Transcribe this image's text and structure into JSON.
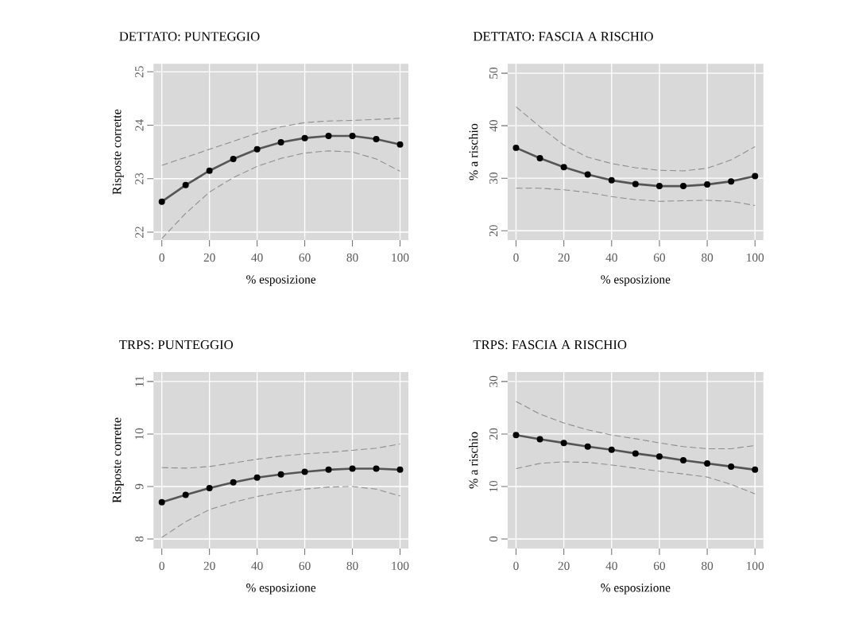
{
  "chart_data": [
    {
      "type": "line",
      "title": "DETTATO: PUNTEGGIO",
      "xlabel": "% esposizione",
      "ylabel": "Risposte corrette",
      "x": [
        0,
        10,
        20,
        30,
        40,
        50,
        60,
        70,
        80,
        90,
        100
      ],
      "xlim": [
        -3.5,
        103.5
      ],
      "ylim": [
        21.85,
        25.15
      ],
      "xticks": [
        0,
        20,
        40,
        60,
        80,
        100
      ],
      "yticks": [
        22,
        23,
        24,
        25
      ],
      "grid": true,
      "series": [
        {
          "color": "#8c8c8c",
          "line_style": "dashed",
          "marker": "none",
          "values": [
            21.88,
            22.35,
            22.75,
            23.02,
            23.23,
            23.38,
            23.48,
            23.52,
            23.5,
            23.37,
            23.14
          ]
        },
        {
          "color": "#8c8c8c",
          "line_style": "dashed",
          "marker": "none",
          "values": [
            23.25,
            23.4,
            23.55,
            23.7,
            23.85,
            23.97,
            24.05,
            24.08,
            24.09,
            24.11,
            24.13
          ]
        },
        {
          "color": "#555555",
          "line_style": "solid",
          "marker": "circle",
          "values": [
            22.57,
            22.88,
            23.15,
            23.37,
            23.55,
            23.68,
            23.76,
            23.8,
            23.8,
            23.74,
            23.64
          ]
        }
      ]
    },
    {
      "type": "line",
      "title": "DETTATO: FASCIA A RISCHIO",
      "xlabel": "% esposizione",
      "ylabel": "% a rischio",
      "x": [
        0,
        10,
        20,
        30,
        40,
        50,
        60,
        70,
        80,
        90,
        100
      ],
      "xlim": [
        -3.5,
        103.5
      ],
      "ylim": [
        18.2,
        51.8
      ],
      "xticks": [
        0,
        20,
        40,
        60,
        80,
        100
      ],
      "yticks": [
        20,
        30,
        40,
        50
      ],
      "grid": true,
      "series": [
        {
          "color": "#8c8c8c",
          "line_style": "dashed",
          "marker": "none",
          "values": [
            28.1,
            28.1,
            27.8,
            27.3,
            26.5,
            25.9,
            25.6,
            25.7,
            25.8,
            25.6,
            24.8
          ]
        },
        {
          "color": "#8c8c8c",
          "line_style": "dashed",
          "marker": "none",
          "values": [
            43.6,
            39.8,
            36.3,
            34.0,
            32.8,
            32.0,
            31.5,
            31.4,
            31.9,
            33.5,
            36.0
          ]
        },
        {
          "color": "#555555",
          "line_style": "solid",
          "marker": "circle",
          "values": [
            35.8,
            33.8,
            32.1,
            30.7,
            29.6,
            28.9,
            28.5,
            28.5,
            28.8,
            29.4,
            30.4
          ]
        }
      ]
    },
    {
      "type": "line",
      "title": "TRPS: PUNTEGGIO",
      "xlabel": "% esposizione",
      "ylabel": "Risposte corrette",
      "x": [
        0,
        10,
        20,
        30,
        40,
        50,
        60,
        70,
        80,
        90,
        100
      ],
      "xlim": [
        -3.5,
        103.5
      ],
      "ylim": [
        7.82,
        11.18
      ],
      "xticks": [
        0,
        20,
        40,
        60,
        80,
        100
      ],
      "yticks": [
        8,
        9,
        10,
        11
      ],
      "grid": true,
      "series": [
        {
          "color": "#8c8c8c",
          "line_style": "dashed",
          "marker": "none",
          "values": [
            8.03,
            8.33,
            8.56,
            8.7,
            8.81,
            8.89,
            8.95,
            8.99,
            9.0,
            8.95,
            8.82
          ]
        },
        {
          "color": "#8c8c8c",
          "line_style": "dashed",
          "marker": "none",
          "values": [
            9.36,
            9.35,
            9.38,
            9.45,
            9.52,
            9.58,
            9.62,
            9.65,
            9.69,
            9.73,
            9.81
          ]
        },
        {
          "color": "#555555",
          "line_style": "solid",
          "marker": "circle",
          "values": [
            8.7,
            8.84,
            8.97,
            9.08,
            9.17,
            9.23,
            9.28,
            9.32,
            9.34,
            9.34,
            9.32
          ]
        }
      ]
    },
    {
      "type": "line",
      "title": "TRPS: FASCIA A RISCHIO",
      "xlabel": "% esposizione",
      "ylabel": "% a rischio",
      "x": [
        0,
        10,
        20,
        30,
        40,
        50,
        60,
        70,
        80,
        90,
        100
      ],
      "xlim": [
        -3.5,
        103.5
      ],
      "ylim": [
        -1.8,
        31.8
      ],
      "xticks": [
        0,
        20,
        40,
        60,
        80,
        100
      ],
      "yticks": [
        0,
        10,
        20,
        30
      ],
      "grid": true,
      "series": [
        {
          "color": "#8c8c8c",
          "line_style": "dashed",
          "marker": "none",
          "values": [
            13.4,
            14.4,
            14.7,
            14.6,
            14.1,
            13.5,
            12.9,
            12.4,
            11.8,
            10.4,
            8.6
          ]
        },
        {
          "color": "#8c8c8c",
          "line_style": "dashed",
          "marker": "none",
          "values": [
            26.2,
            23.8,
            22.1,
            20.8,
            19.8,
            19.1,
            18.3,
            17.6,
            17.2,
            17.2,
            17.8
          ]
        },
        {
          "color": "#555555",
          "line_style": "solid",
          "marker": "circle",
          "values": [
            19.8,
            19.0,
            18.3,
            17.6,
            17.0,
            16.3,
            15.7,
            15.0,
            14.4,
            13.8,
            13.2
          ]
        }
      ]
    }
  ]
}
